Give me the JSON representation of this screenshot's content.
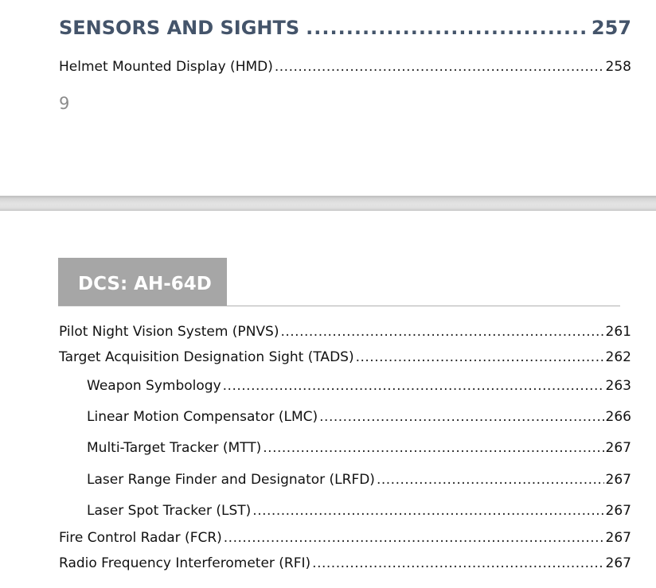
{
  "top_page": {
    "section": {
      "title": "SENSORS AND SIGHTS",
      "page": "257"
    },
    "entries": [
      {
        "title": "Helmet Mounted Display (HMD)",
        "page": "258"
      }
    ],
    "page_number": "9"
  },
  "bottom_page": {
    "chapter_title": "DCS: AH-64D",
    "entries": [
      {
        "title": "Pilot Night Vision System (PNVS)",
        "page": "261"
      },
      {
        "title": "Target Acquisition Designation Sight (TADS)",
        "page": "262"
      },
      {
        "title": "Weapon Symbology",
        "page": "263"
      },
      {
        "title": "Linear Motion Compensator (LMC)",
        "page": "266"
      },
      {
        "title": "Multi-Target Tracker (MTT)",
        "page": "267"
      },
      {
        "title": "Laser Range Finder and Designator (LRFD)",
        "page": "267"
      },
      {
        "title": "Laser Spot Tracker (LST)",
        "page": "267"
      },
      {
        "title": "Fire Control Radar (FCR)",
        "page": "267"
      },
      {
        "title": "Radio Frequency Interferometer (RFI)",
        "page": "267"
      }
    ]
  }
}
